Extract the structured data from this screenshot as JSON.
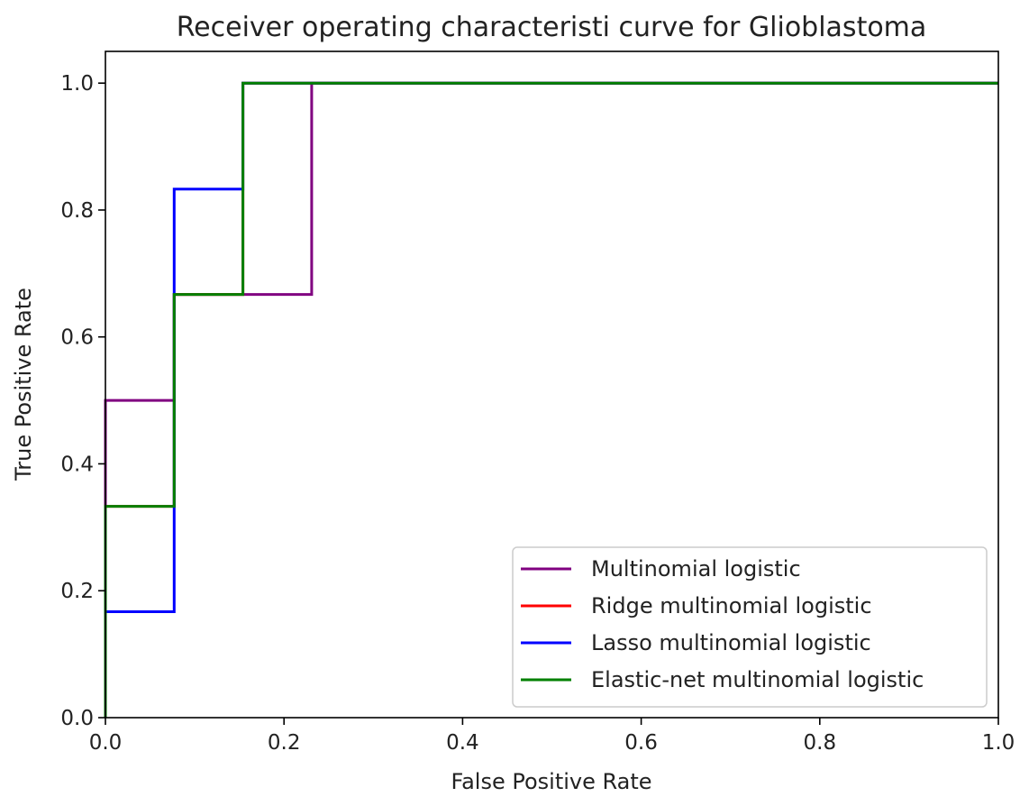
{
  "chart_data": {
    "type": "line",
    "title": "Receiver operating characteristi curve for Glioblastoma",
    "xlabel": "False Positive Rate",
    "ylabel": "True Positive Rate",
    "xlim": [
      0.0,
      1.0
    ],
    "ylim": [
      0.0,
      1.05
    ],
    "xticks": [
      "0.0",
      "0.2",
      "0.4",
      "0.6",
      "0.8",
      "1.0"
    ],
    "yticks": [
      "0.0",
      "0.2",
      "0.4",
      "0.6",
      "0.8",
      "1.0"
    ],
    "grid": false,
    "legend_position": "lower-right",
    "series": [
      {
        "name": "Multinomial logistic",
        "color": "#800080",
        "x": [
          0.0,
          0.0,
          0.077,
          0.077,
          0.231,
          0.231,
          1.0
        ],
        "y": [
          0.0,
          0.5,
          0.5,
          0.667,
          0.667,
          1.0,
          1.0
        ]
      },
      {
        "name": "Ridge multinomial logistic",
        "color": "#ff0000",
        "x": [
          0.0,
          0.0,
          0.077,
          0.077,
          0.154,
          0.154,
          1.0
        ],
        "y": [
          0.0,
          0.333,
          0.333,
          0.667,
          0.667,
          1.0,
          1.0
        ]
      },
      {
        "name": "Lasso multinomial logistic",
        "color": "#0000ff",
        "x": [
          0.0,
          0.0,
          0.077,
          0.077,
          0.154,
          0.154,
          1.0
        ],
        "y": [
          0.0,
          0.167,
          0.167,
          0.833,
          0.833,
          1.0,
          1.0
        ]
      },
      {
        "name": "Elastic-net multinomial logistic",
        "color": "#008000",
        "x": [
          0.0,
          0.0,
          0.077,
          0.077,
          0.154,
          0.154,
          1.0
        ],
        "y": [
          0.0,
          0.333,
          0.333,
          0.667,
          0.667,
          1.0,
          1.0
        ]
      }
    ]
  }
}
